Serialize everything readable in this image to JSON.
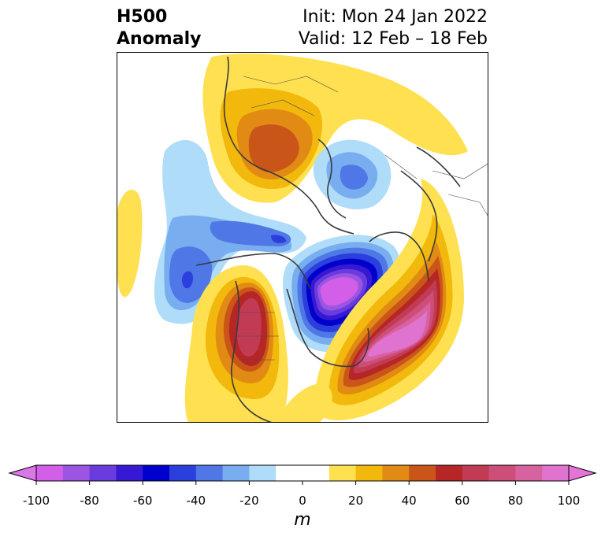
{
  "header": {
    "title_line1": "H500",
    "title_line2": "Anomaly",
    "init": "Init: Mon 24 Jan 2022",
    "valid": "Valid: 12 Feb – 18 Feb"
  },
  "map": {
    "projection": "polar-stereographic",
    "field": "500 hPa geopotential height anomaly",
    "features": [
      {
        "name": "negative-anomaly-hudson-bay",
        "sign": "negative",
        "peak": -100
      },
      {
        "name": "positive-anomaly-north-atlantic",
        "sign": "positive",
        "peak": 100
      },
      {
        "name": "positive-anomaly-western-north-america",
        "sign": "positive",
        "peak": 60
      },
      {
        "name": "negative-anomaly-north-pacific",
        "sign": "negative",
        "peak": -50
      },
      {
        "name": "positive-anomaly-siberia",
        "sign": "positive",
        "peak": 50
      },
      {
        "name": "negative-anomaly-europe",
        "sign": "negative",
        "peak": -40
      }
    ]
  },
  "colorbar": {
    "units": "m",
    "extend": "both",
    "ticks": [
      "-100",
      "-80",
      "-60",
      "-40",
      "-20",
      "0",
      "20",
      "40",
      "60",
      "80",
      "100"
    ],
    "tick_values": [
      -100,
      -80,
      -60,
      -40,
      -20,
      0,
      20,
      40,
      60,
      80,
      100
    ],
    "levels": [
      -100,
      -90,
      -80,
      -70,
      -60,
      -50,
      -40,
      -30,
      -20,
      -10,
      10,
      20,
      30,
      40,
      50,
      60,
      70,
      80,
      90,
      100
    ],
    "colors": [
      "#d35ee8",
      "#9b55e0",
      "#6a3ce0",
      "#3719d3",
      "#0000cd",
      "#2a3fdb",
      "#4f78e6",
      "#78aef0",
      "#aedcf9",
      "#ffffff",
      "#ffe050",
      "#f2b80c",
      "#e18a14",
      "#c95618",
      "#b62626",
      "#c23b55",
      "#cd4e78",
      "#d762a0",
      "#e173d0"
    ],
    "under_color": "#d877e8",
    "over_color": "#e673d8"
  }
}
